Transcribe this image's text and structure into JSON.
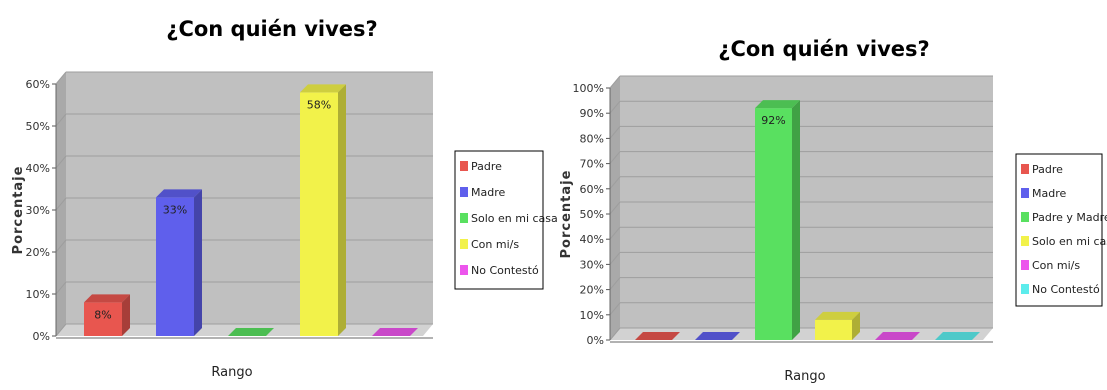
{
  "chart_data": [
    {
      "type": "bar",
      "title": "¿Con quién vives?",
      "xlabel": "Rango",
      "ylabel": "Porcentaje",
      "ylim": [
        0,
        60
      ],
      "yticks": [
        "0%",
        "10%",
        "20%",
        "30%",
        "40%",
        "50%",
        "60%"
      ],
      "grid": true,
      "legend_position": "right",
      "series": [
        {
          "name": "Padre",
          "value": 8,
          "label": "8%",
          "color": "#e8564f"
        },
        {
          "name": "Madre",
          "value": 33,
          "label": "33%",
          "color": "#5f5fec"
        },
        {
          "name": "Solo en mi casa",
          "value": 0,
          "label": "",
          "color": "#59e060"
        },
        {
          "name": "Con mi/s",
          "value": 58,
          "label": "58%",
          "color": "#f2f24a"
        },
        {
          "name": "No Contestó",
          "value": 0,
          "label": "",
          "color": "#ec55ec"
        }
      ]
    },
    {
      "type": "bar",
      "title": "¿Con quién vives?",
      "xlabel": "Rango",
      "ylabel": "Porcentaje",
      "ylim": [
        0,
        100
      ],
      "yticks": [
        "0%",
        "10%",
        "20%",
        "30%",
        "40%",
        "50%",
        "60%",
        "70%",
        "80%",
        "90%",
        "100%"
      ],
      "grid": true,
      "legend_position": "right",
      "series": [
        {
          "name": "Padre",
          "value": 0,
          "label": "",
          "color": "#e8564f"
        },
        {
          "name": "Madre",
          "value": 0,
          "label": "",
          "color": "#5f5fec"
        },
        {
          "name": "Padre y Madre",
          "value": 92,
          "label": "92%",
          "color": "#59e060"
        },
        {
          "name": "Solo en mi casa",
          "value": 8,
          "label": "",
          "color": "#f2f24a"
        },
        {
          "name": "Con mi/s",
          "value": 0,
          "label": "",
          "color": "#ec55ec"
        },
        {
          "name": "No Contestó",
          "value": 0,
          "label": "",
          "color": "#5cecec"
        }
      ]
    }
  ]
}
